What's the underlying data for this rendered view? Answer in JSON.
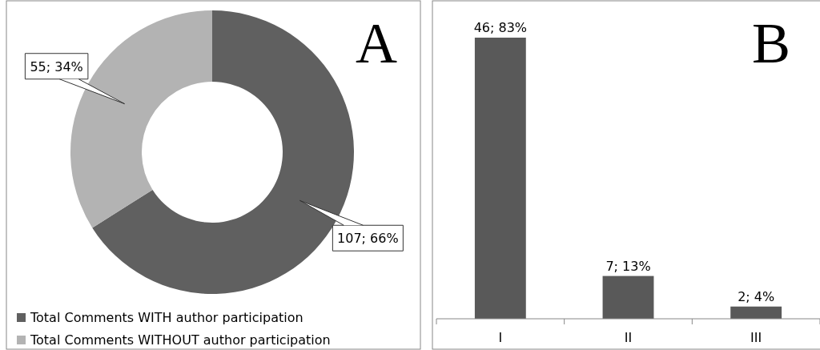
{
  "chart_data": [
    {
      "type": "donut",
      "title": "A",
      "categories": [
        "Total Comments WITH author participation",
        "Total Comments WITHOUT author participation"
      ],
      "values": [
        107,
        55
      ],
      "colors": [
        "#606060",
        "#b3b3b3"
      ],
      "value_labels": [
        "107; 66%",
        "55; 34%"
      ],
      "legend": "bottom left"
    },
    {
      "type": "bar",
      "title": "B",
      "categories": [
        "I",
        "II",
        "III"
      ],
      "values": [
        46,
        7,
        2
      ],
      "color": "#595959",
      "value_labels": [
        "46; 83%",
        "7; 13%",
        "2; 4%"
      ],
      "ylim": [
        0,
        46
      ],
      "tick_labels": "x"
    }
  ]
}
